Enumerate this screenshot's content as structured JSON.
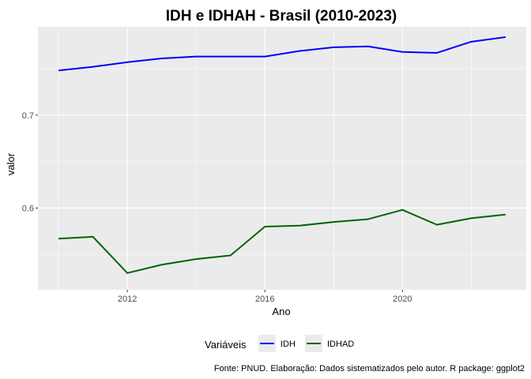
{
  "chart_data": {
    "type": "line",
    "title": "IDH e IDHAH - Brasil (2010-2023)",
    "xlabel": "Ano",
    "ylabel": "valor",
    "xlim": [
      2009.4,
      2023.6
    ],
    "ylim": [
      0.512,
      0.795
    ],
    "x_ticks": [
      2012,
      2016,
      2020
    ],
    "x_minor_ticks": [
      2010,
      2014,
      2018,
      2022
    ],
    "y_ticks": [
      0.6,
      0.7
    ],
    "y_minor_ticks": [
      0.55,
      0.65,
      0.75
    ],
    "x_tick_labels": [
      "2012",
      "2016",
      "2020"
    ],
    "y_tick_labels": [
      "0.6",
      "0.7"
    ],
    "grid": true,
    "x": [
      2010,
      2011,
      2012,
      2013,
      2014,
      2015,
      2016,
      2017,
      2018,
      2019,
      2020,
      2021,
      2022,
      2023
    ],
    "series": [
      {
        "name": "IDH",
        "color": "#0000FF",
        "values": [
          0.748,
          0.752,
          0.757,
          0.761,
          0.763,
          0.763,
          0.763,
          0.769,
          0.773,
          0.774,
          0.768,
          0.767,
          0.779,
          0.784
        ]
      },
      {
        "name": "IDHAD",
        "color": "#006400",
        "values": [
          0.567,
          0.569,
          0.53,
          0.539,
          0.545,
          0.549,
          0.58,
          0.581,
          0.585,
          0.588,
          0.598,
          0.582,
          0.589,
          0.593
        ]
      }
    ],
    "legend": {
      "title": "Variáveis",
      "position": "bottom"
    },
    "caption": "Fonte: PNUD. Elaboração: Dados sistematizados pelo autor. R package: ggplot2"
  }
}
